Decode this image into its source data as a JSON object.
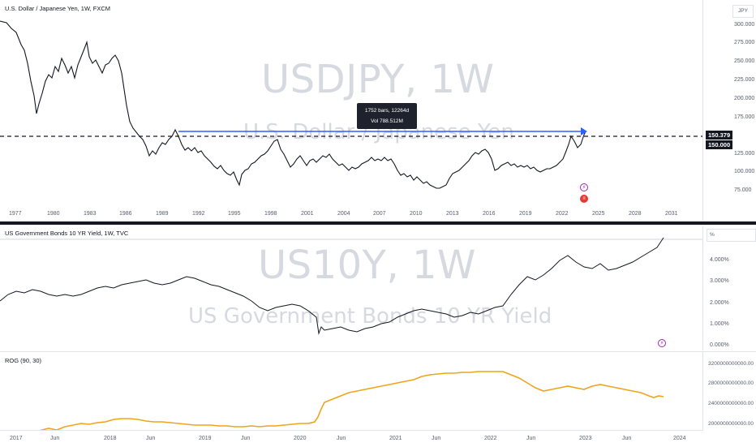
{
  "pane1": {
    "title": "U.S. Dollar / Japanese Yen, 1W, FXCM",
    "watermark_symbol": "USDJPY, 1W",
    "watermark_name": "U.S. Dollar / Japanese Yen",
    "unit": "JPY",
    "price_ticks": [
      "300.000",
      "275.000",
      "250.000",
      "225.000",
      "200.000",
      "175.000",
      "125.000",
      "100.000",
      "75.000"
    ],
    "last_price": "150.379",
    "level_price": "150.000",
    "time_ticks": [
      "1977",
      "1980",
      "1983",
      "1986",
      "1989",
      "1992",
      "1995",
      "1998",
      "2001",
      "2004",
      "2007",
      "2010",
      "2013",
      "2016",
      "2019",
      "2022",
      "2025",
      "2028",
      "2031"
    ],
    "tooltip_line1": "1752 bars, 12264d",
    "tooltip_line2": "Vol 788.512M",
    "colors": {
      "line": "#131722",
      "ruler": "#2962ff",
      "level": "#131722"
    }
  },
  "pane2": {
    "title": "US Government Bonds 10 YR Yield, 1W, TVC",
    "watermark_symbol": "US10Y, 1W",
    "watermark_name": "US Government Bonds 10 YR Yield",
    "unit": "%",
    "yield_ticks": [
      "4.000%",
      "3.000%",
      "2.000%",
      "1.000%",
      "0.000%"
    ],
    "colors": {
      "up": "#26a69a",
      "down": "#131722"
    }
  },
  "pane3": {
    "title": "ROG (90, 30)",
    "value_ticks": [
      "3200000000000.00",
      "2800000000000.00",
      "2400000000000.00",
      "2000000000000.00"
    ],
    "colors": {
      "line": "#f0a31c"
    }
  },
  "bottom_axis": {
    "ticks": [
      "2017",
      "Jun",
      "2018",
      "Jun",
      "2019",
      "Jun",
      "2020",
      "Jun",
      "2021",
      "Jun",
      "2022",
      "Jun",
      "2023",
      "Jun",
      "2024"
    ]
  },
  "icons": {
    "flash": "lightning-icon",
    "flag": "us-flag-icon"
  }
}
